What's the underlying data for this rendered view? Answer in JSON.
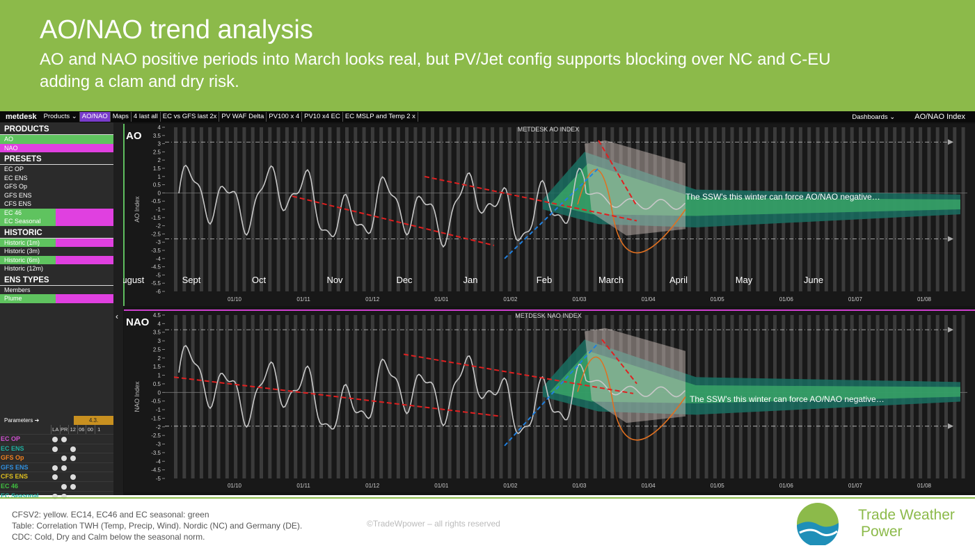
{
  "header": {
    "title": "AO/NAO trend analysis",
    "subtitle": [
      "AO and NAO positive periods into March looks real, but PV/Jet config supports blocking over NC and C-EU",
      "adding a clam and dry risk."
    ]
  },
  "toolbar": {
    "logo": "metdesk",
    "menu": [
      "Products ⌄",
      "AO/NAO",
      "Maps",
      "4 last all",
      "EC vs GFS last 2x",
      "PV WAF Delta",
      "PV100 x 4",
      "PV10 x4 EC",
      "EC MSLP and Temp 2 x"
    ],
    "right": [
      "Dashboards ⌄",
      "AO/NAO Index"
    ]
  },
  "sidebar": {
    "sections": [
      {
        "title": "PRODUCTS",
        "items": [
          {
            "label": "AO",
            "style": "green"
          },
          {
            "label": "NAO",
            "style": "magenta"
          }
        ]
      },
      {
        "title": "PRESETS",
        "items": [
          {
            "label": "EC OP"
          },
          {
            "label": "EC ENS"
          },
          {
            "label": "GFS Op"
          },
          {
            "label": "GFS ENS"
          },
          {
            "label": "CFS ENS"
          },
          {
            "label": "EC 46",
            "style": "split"
          },
          {
            "label": "EC Seasonal",
            "style": "split"
          }
        ]
      },
      {
        "title": "HISTORIC",
        "items": [
          {
            "label": "Historic (1m)",
            "style": "split"
          },
          {
            "label": "Historic (3m)"
          },
          {
            "label": "Historic (6m)",
            "style": "split"
          },
          {
            "label": "Historic (12m)"
          }
        ]
      },
      {
        "title": "ENS TYPES",
        "items": [
          {
            "label": "Members"
          },
          {
            "label": "Plume",
            "style": "split"
          }
        ]
      }
    ]
  },
  "parameters": {
    "label": "Parameters ➔",
    "value": "4.3.",
    "columns": [
      "LA",
      "PR",
      "12",
      "06",
      "00",
      "1"
    ],
    "rows": [
      {
        "label": "EC OP",
        "color": "#d050d0"
      },
      {
        "label": "EC ENS",
        "color": "#20b0a0"
      },
      {
        "label": "GFS Op",
        "color": "#f08020"
      },
      {
        "label": "GFS ENS",
        "color": "#3090e0"
      },
      {
        "label": "CFS ENS",
        "color": "#e0c020"
      },
      {
        "label": "EC 46",
        "color": "#40c040"
      },
      {
        "label": "EC Seasonal",
        "color": "#20b0a0"
      }
    ]
  },
  "panels": [
    {
      "label": "AO",
      "title": "METDESK AO INDEX",
      "axis_label": "AO Index",
      "border": "#5fbf5f",
      "yticks": [
        4,
        3.5,
        3,
        2.5,
        2,
        1.5,
        1,
        0.5,
        0,
        -0.5,
        -1,
        -1.5,
        -2,
        -2.5,
        -3,
        -3.5,
        -4,
        -4.5,
        -5,
        -5.5,
        -6
      ],
      "months": [
        "August",
        "Sept",
        "Oct",
        "Nov",
        "Dec",
        "Jan",
        "Feb",
        "March",
        "April",
        "May",
        "June"
      ],
      "dates": [
        "01/10",
        "01/11",
        "01/12",
        "01/01",
        "01/02",
        "01/03",
        "01/04",
        "01/05",
        "01/06",
        "01/07",
        "01/08"
      ],
      "annotation": "The SSW's this winter can force AO/NAO negative…"
    },
    {
      "label": "NAO",
      "title": "METDESK NAO INDEX",
      "axis_label": "NAO Index",
      "border": "#d040d0",
      "yticks": [
        4.5,
        4,
        3.5,
        3,
        2.5,
        2,
        1.5,
        1,
        0.5,
        0,
        -0.5,
        -1,
        -1.5,
        -2,
        -2.5,
        -3,
        -3.5,
        -4,
        -4.5,
        -5
      ],
      "dates": [
        "01/10",
        "01/11",
        "01/12",
        "01/01",
        "01/02",
        "01/03",
        "01/04",
        "01/05",
        "01/06",
        "01/07",
        "01/08"
      ],
      "annotation": "The SSW's this winter can force AO/NAO negative…"
    }
  ],
  "footer": {
    "notes": [
      "CFSV2: yellow. EC14, EC46 and EC seasonal: green",
      "Table: Correlation TWH (Temp, Precip, Wind). Nordic (NC) and Germany (DE).",
      "CDC: Cold, Dry and Calm below the seasonal norm."
    ],
    "copyright": "©TradeWpower – all rights reserved",
    "brand": [
      "Trade Weather",
      "Power"
    ]
  }
}
